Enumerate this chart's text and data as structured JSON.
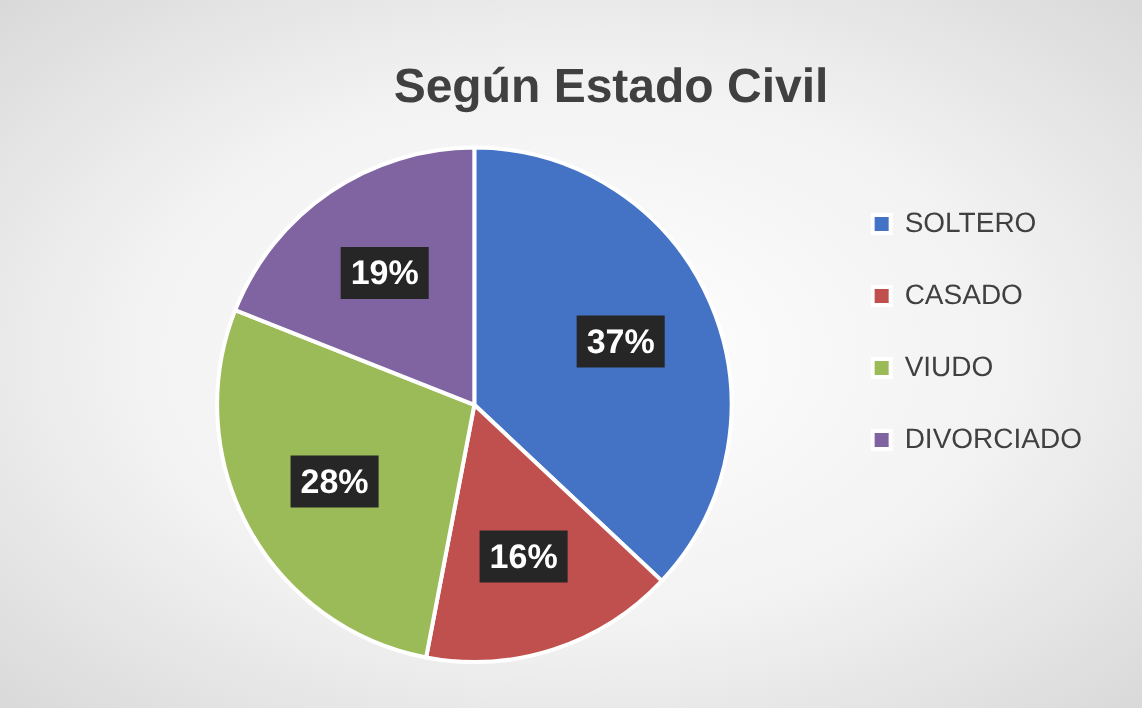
{
  "chart_data": {
    "type": "pie",
    "title": "Según Estado Civil",
    "categories": [
      "SOLTERO",
      "CASADO",
      "VIUDO",
      "DIVORCIADO"
    ],
    "values": [
      37,
      16,
      28,
      19
    ],
    "value_labels": [
      "37%",
      "16%",
      "28%",
      "19%"
    ],
    "colors": [
      "#4472c4",
      "#c0504d",
      "#9bbb59",
      "#8064a2"
    ],
    "legend": "right"
  }
}
